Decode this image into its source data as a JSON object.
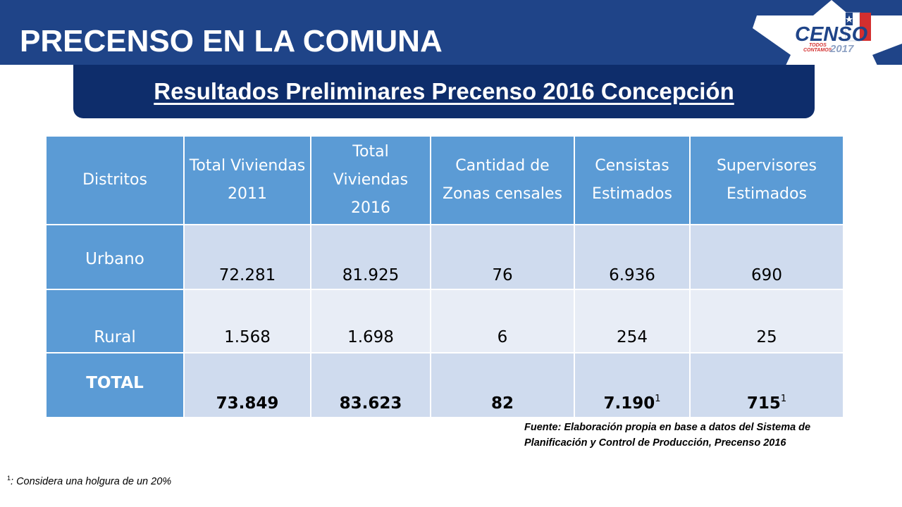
{
  "header": {
    "title": "PRECENSO EN LA COMUNA",
    "subtitle": "Resultados Preliminares Precenso 2016 Concepción"
  },
  "logo": {
    "icon": "censo-2017-logo",
    "text": "CENSO",
    "tagline_1": "TODOS",
    "tagline_2": "CONTAMOS",
    "year": "2017",
    "colors": {
      "blue": "#1f4488",
      "red": "#d32f2f"
    }
  },
  "table": {
    "headers": [
      "Distritos",
      "Total Viviendas 2011",
      "Total Viviendas 2016",
      "Cantidad de Zonas censales",
      "Censistas Estimados",
      "Supervisores Estimados"
    ],
    "rows": [
      {
        "label": "Urbano",
        "cells": [
          "72.281",
          "81.925",
          "76",
          "6.936",
          "690"
        ]
      },
      {
        "label": "Rural",
        "cells": [
          "1.568",
          "1.698",
          "6",
          "254",
          "25"
        ]
      },
      {
        "label": "TOTAL",
        "cells": [
          "73.849",
          "83.623",
          "82",
          "7.190",
          "715"
        ],
        "footnote_marks": [
          "",
          "",
          "",
          "1",
          "1"
        ]
      }
    ]
  },
  "source_note": "Fuente: Elaboración propia en base a datos del Sistema de Planificación y Control de Producción, Precenso 2016",
  "footnote": {
    "mark": "1",
    "text": ": Considera una holgura de un 20%"
  },
  "colors": {
    "header_bar": "#1f4488",
    "subtitle_box": "#0e2d6b",
    "table_header": "#5b9bd5",
    "row_dark": "#cfdbee",
    "row_light": "#e8edf6"
  }
}
